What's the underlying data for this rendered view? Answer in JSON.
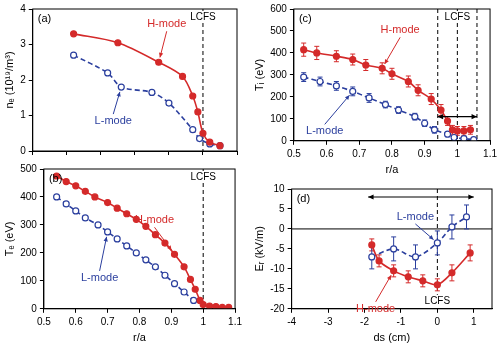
{
  "chart_data": [
    {
      "type": "line",
      "panel": "(a)",
      "y_label": "nₑ (10¹⁹/m³)",
      "xlim": [
        0.5,
        1.1
      ],
      "xticks": [
        0.5,
        0.6,
        0.7,
        0.8,
        0.9,
        1,
        1.1
      ],
      "ylim": [
        0,
        4
      ],
      "yticks": [
        0,
        1,
        2,
        3,
        4
      ],
      "grid": false,
      "tick_labels": "y",
      "reference_lines": [
        {
          "x": 1,
          "label": "LCFS",
          "line_style": "dashed"
        }
      ],
      "series": [
        {
          "name": "H-mode",
          "color": "#d42a2a",
          "marker": "circle",
          "line_style": "solid",
          "x": [
            0.62,
            0.75,
            0.87,
            0.94,
            0.97,
            0.985,
            1.0,
            1.02,
            1.05
          ],
          "values": [
            3.3,
            3.05,
            2.5,
            2.1,
            1.55,
            1.1,
            0.5,
            0.25,
            0.15
          ]
        },
        {
          "name": "L-mode",
          "color": "#2b3f9e",
          "marker": "open_circle",
          "line_style": "dashed",
          "x": [
            0.62,
            0.72,
            0.76,
            0.85,
            0.9,
            0.97,
            0.99,
            1.02,
            1.05
          ],
          "values": [
            2.7,
            2.2,
            1.8,
            1.65,
            1.35,
            0.6,
            0.35,
            0.2,
            0.15
          ]
        }
      ]
    },
    {
      "type": "line",
      "panel": "(b)",
      "x_label": "r/a",
      "y_label": "Tₑ (eV)",
      "xlim": [
        0.5,
        1.1
      ],
      "xticks": [
        0.5,
        0.6,
        0.7,
        0.8,
        0.9,
        1,
        1.1
      ],
      "ylim": [
        0,
        500
      ],
      "yticks": [
        0,
        100,
        200,
        300,
        400,
        500
      ],
      "grid": false,
      "tick_labels": true,
      "reference_lines": [
        {
          "x": 1,
          "label": "LCFS",
          "line_style": "dashed"
        }
      ],
      "series": [
        {
          "name": "H-mode",
          "color": "#d42a2a",
          "marker": "circle",
          "line_style": "solid",
          "x": [
            0.54,
            0.57,
            0.6,
            0.63,
            0.66,
            0.7,
            0.73,
            0.76,
            0.79,
            0.82,
            0.85,
            0.88,
            0.91,
            0.94,
            0.96,
            0.975,
            0.99,
            1.0,
            1.02,
            1.04,
            1.06,
            1.08
          ],
          "values": [
            475,
            455,
            440,
            420,
            400,
            380,
            360,
            340,
            320,
            295,
            265,
            235,
            195,
            150,
            105,
            70,
            30,
            15,
            10,
            8,
            5,
            5
          ]
        },
        {
          "name": "L-mode",
          "color": "#2b3f9e",
          "marker": "open_circle",
          "line_style": "dashed",
          "x": [
            0.54,
            0.57,
            0.6,
            0.63,
            0.67,
            0.7,
            0.73,
            0.76,
            0.79,
            0.82,
            0.85,
            0.88,
            0.91,
            0.94,
            0.97
          ],
          "values": [
            400,
            375,
            350,
            325,
            300,
            275,
            250,
            225,
            200,
            175,
            150,
            120,
            90,
            60,
            30
          ]
        }
      ]
    },
    {
      "type": "line",
      "panel": "(c)",
      "x_label": "r/a",
      "y_label": "Tᵢ (eV)",
      "xlim": [
        0.5,
        1.1
      ],
      "xticks": [
        0.5,
        0.6,
        0.7,
        0.8,
        0.9,
        1,
        1.1
      ],
      "ylim": [
        0,
        600
      ],
      "yticks": [
        0,
        100,
        200,
        300,
        400,
        500,
        600
      ],
      "grid": false,
      "tick_labels": true,
      "reference_lines": [
        {
          "x": 0.94,
          "line_style": "dashed"
        },
        {
          "x": 1,
          "label": "LCFS",
          "line_style": "dashed"
        },
        {
          "x": 1.06,
          "line_style": "dashed"
        }
      ],
      "spans": [
        {
          "from": 0.94,
          "to": 1.06,
          "y": 110
        }
      ],
      "series": [
        {
          "name": "H-mode",
          "color": "#d42a2a",
          "marker": "circle",
          "line_style": "solid",
          "x": [
            0.53,
            0.57,
            0.63,
            0.68,
            0.72,
            0.77,
            0.8,
            0.85,
            0.88,
            0.92,
            0.95,
            0.97,
            0.985,
            1.0,
            1.02,
            1.04
          ],
          "values": [
            415,
            400,
            385,
            370,
            345,
            330,
            305,
            270,
            230,
            190,
            140,
            90,
            50,
            45,
            45,
            50
          ],
          "errors": [
            30,
            30,
            25,
            25,
            25,
            25,
            25,
            25,
            25,
            25,
            25,
            20,
            20,
            20,
            20,
            20
          ]
        },
        {
          "name": "L-mode",
          "color": "#2b3f9e",
          "marker": "open_circle",
          "line_style": "dashed",
          "x": [
            0.53,
            0.58,
            0.63,
            0.68,
            0.73,
            0.78,
            0.82,
            0.87,
            0.9,
            0.93,
            0.97,
            0.99,
            1.02,
            1.05
          ],
          "values": [
            290,
            270,
            250,
            225,
            195,
            165,
            140,
            110,
            80,
            50,
            30,
            15,
            10,
            5
          ],
          "errors": [
            20,
            20,
            20,
            20,
            20,
            15,
            15,
            15,
            15,
            15,
            10,
            10,
            10,
            10
          ]
        }
      ]
    },
    {
      "type": "line",
      "panel": "(d)",
      "x_label": "ds (cm)",
      "y_label": "Eᵣ (kV/m)",
      "xlim": [
        -4,
        1.5
      ],
      "xticks": [
        -4,
        -3,
        -2,
        -1,
        0,
        1
      ],
      "ylim": [
        -20,
        10
      ],
      "yticks": [
        -20,
        -15,
        -10,
        -5,
        0,
        5,
        10
      ],
      "grid": false,
      "tick_labels": true,
      "reference_lines": [
        {
          "x": 0,
          "label": "LCFS",
          "line_style": "dashed"
        },
        {
          "y": 0,
          "line_style": "solid"
        }
      ],
      "spans": [
        {
          "from": -1.9,
          "to": 1.0,
          "y": 8
        }
      ],
      "series": [
        {
          "name": "H-mode",
          "color": "#d42a2a",
          "marker": "circle",
          "line_style": "solid",
          "x": [
            -1.8,
            -1.6,
            -1.2,
            -0.8,
            -0.4,
            0,
            0.4,
            0.9
          ],
          "values": [
            -4,
            -8,
            -10.5,
            -12,
            -13,
            -14,
            -11,
            -6
          ],
          "errors": [
            1.5,
            1.5,
            1.5,
            1.5,
            1.5,
            1.5,
            2,
            2
          ]
        },
        {
          "name": "L-mode",
          "color": "#2b3f9e",
          "marker": "open_circle",
          "line_style": "dashed",
          "x": [
            -1.8,
            -1.2,
            -0.6,
            0,
            0.4,
            0.8
          ],
          "values": [
            -7,
            -5,
            -7,
            -3.5,
            0.5,
            3
          ],
          "errors": [
            3,
            3,
            3,
            3,
            3,
            3
          ]
        }
      ]
    }
  ]
}
